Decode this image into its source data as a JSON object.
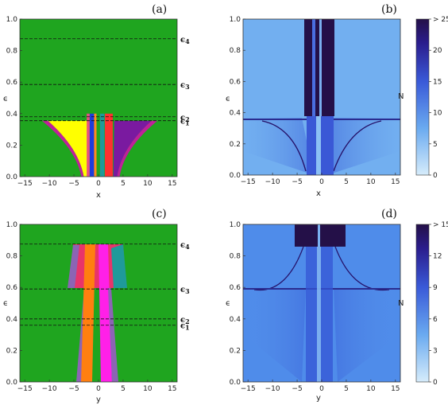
{
  "chart_data": [
    {
      "type": "heatmap",
      "panel_label": "(a)",
      "xlabel": "x",
      "ylabel": "ϵ",
      "xlim": [
        -16,
        16
      ],
      "ylim": [
        0,
        1
      ],
      "xticks": [
        -15,
        -10,
        -5,
        0,
        5,
        10,
        15
      ],
      "yticks": [
        0.0,
        0.2,
        0.4,
        0.6,
        0.8,
        1.0
      ],
      "background_color": "#1fa51f",
      "threshold_lines": [
        {
          "label": "ϵ4",
          "value": 0.875
        },
        {
          "label": "ϵ3",
          "value": 0.585
        },
        {
          "label": "ϵ2",
          "value": 0.38
        },
        {
          "label": "ϵ1",
          "value": 0.355
        }
      ],
      "basins": [
        {
          "color": "#ffff00",
          "x_range": [
            -10,
            -2.5
          ],
          "eps_max": 0.355
        },
        {
          "color": "#1e3cdc",
          "x_range": [
            -1.8,
            -0.9
          ],
          "eps_max": 0.4
        },
        {
          "color": "#ff3030",
          "x_range": [
            1.3,
            2.8
          ],
          "eps_max": 0.4
        },
        {
          "color": "#7a1aa0",
          "x_range": [
            3,
            11
          ],
          "eps_max": 0.355
        }
      ]
    },
    {
      "type": "heatmap",
      "panel_label": "(b)",
      "xlabel": "x",
      "ylabel": "ϵ",
      "xlim": [
        -16,
        16
      ],
      "ylim": [
        0,
        1
      ],
      "xticks": [
        -15,
        -10,
        -5,
        0,
        5,
        10,
        15
      ],
      "yticks": [
        0.0,
        0.2,
        0.4,
        0.6,
        0.8,
        1.0
      ],
      "colorbar": {
        "label": "N",
        "ticks": [
          "0",
          "5",
          "10",
          "15",
          "20",
          "> 25"
        ],
        "min": 0,
        "max": 25,
        "color_low": "#d6ecfb",
        "color_high": "#241048"
      }
    },
    {
      "type": "heatmap",
      "panel_label": "(c)",
      "xlabel": "y",
      "ylabel": "ϵ",
      "xlim": [
        -16,
        16
      ],
      "ylim": [
        0,
        1
      ],
      "xticks": [
        -15,
        -10,
        -5,
        0,
        5,
        10,
        15
      ],
      "yticks": [
        0.0,
        0.2,
        0.4,
        0.6,
        0.8,
        1.0
      ],
      "background_color": "#1fa51f",
      "threshold_lines": [
        {
          "label": "ϵ4",
          "value": 0.875
        },
        {
          "label": "ϵ3",
          "value": 0.59
        },
        {
          "label": "ϵ2",
          "value": 0.4
        },
        {
          "label": "ϵ1",
          "value": 0.36
        }
      ],
      "basins": [
        {
          "color": "#8c64b4",
          "x_range": [
            -4,
            -2
          ],
          "eps_max": 0.59
        },
        {
          "color": "#ff7f10",
          "x_range": [
            -2,
            0
          ],
          "eps_max": 0.87
        },
        {
          "color": "#ff20e8",
          "x_range": [
            0.5,
            2.5
          ],
          "eps_max": 0.87
        },
        {
          "color": "#e8346a",
          "x_range": [
            -7,
            7
          ],
          "eps_max": 0.87
        },
        {
          "color": "#1f9a9a",
          "x_range": [
            4,
            7
          ],
          "eps_max": 0.87
        }
      ]
    },
    {
      "type": "heatmap",
      "panel_label": "(d)",
      "xlabel": "y",
      "ylabel": "ϵ",
      "xlim": [
        -16,
        16
      ],
      "ylim": [
        0,
        1
      ],
      "xticks": [
        -15,
        -10,
        -5,
        0,
        5,
        10,
        15
      ],
      "yticks": [
        0.0,
        0.2,
        0.4,
        0.6,
        0.8,
        1.0
      ],
      "colorbar": {
        "label": "N",
        "ticks": [
          "0",
          "3",
          "6",
          "9",
          "12",
          "> 15"
        ],
        "min": 0,
        "max": 15,
        "color_low": "#d6ecfb",
        "color_high": "#241048"
      }
    }
  ]
}
